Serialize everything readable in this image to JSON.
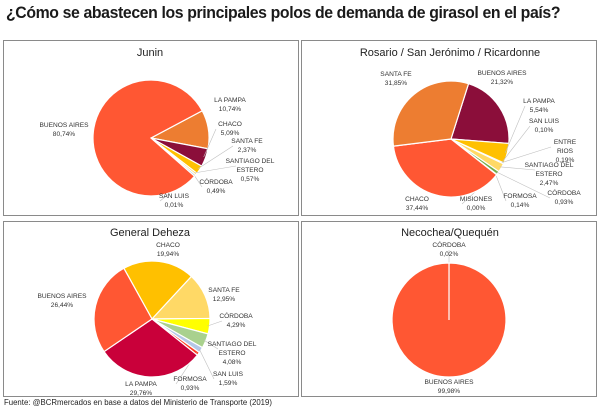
{
  "title": "¿Cómo se abastecen los principales polos de demanda de girasol en el país?",
  "footer": "Fuente: @BCRmercados en base a datos del Ministerio de Transporte (2019)",
  "chart_data": [
    {
      "type": "pie",
      "title": "Junin",
      "slices": [
        {
          "label": "LA PAMPA",
          "value": 10.74,
          "text": "10,74%",
          "color": "#ED7D31"
        },
        {
          "label": "CHACO",
          "value": 5.09,
          "text": "5,09%",
          "color": "#8B0E3A"
        },
        {
          "label": "SANTA FE",
          "value": 2.37,
          "text": "2,37%",
          "color": "#FFC000"
        },
        {
          "label": "SANTIAGO DEL ESTERO",
          "value": 0.57,
          "text": "0,57%",
          "color": "#FFD966"
        },
        {
          "label": "CÓRDOBA",
          "value": 0.49,
          "text": "0,49%",
          "color": "#9DC3E6"
        },
        {
          "label": "SAN LUIS",
          "value": 0.01,
          "text": "0,01%",
          "color": "#A9D18E"
        },
        {
          "label": "BUENOS AIRES",
          "value": 80.74,
          "text": "80,74%",
          "color": "#FF5733"
        }
      ]
    },
    {
      "type": "pie",
      "title": "Rosario / San Jerónimo / Ricardonne",
      "slices": [
        {
          "label": "BUENOS AIRES",
          "value": 21.32,
          "text": "21,32%",
          "color": "#8B0E3A"
        },
        {
          "label": "LA PAMPA",
          "value": 5.54,
          "text": "5,54%",
          "color": "#FFC000"
        },
        {
          "label": "SAN LUIS",
          "value": 0.1,
          "text": "0,10%",
          "color": "#9DC3E6"
        },
        {
          "label": "ENTRE RIOS",
          "value": 0.19,
          "text": "0,19%",
          "color": "#5B9BD5"
        },
        {
          "label": "SANTIAGO DEL ESTERO",
          "value": 2.47,
          "text": "2,47%",
          "color": "#FFD966"
        },
        {
          "label": "CÓRDOBA",
          "value": 0.93,
          "text": "0,93%",
          "color": "#70AD47"
        },
        {
          "label": "FORMOSA",
          "value": 0.14,
          "text": "0,14%",
          "color": "#A5A5A5"
        },
        {
          "label": "MISIONES",
          "value": 0.0,
          "text": "0,00%",
          "color": "#4472C4"
        },
        {
          "label": "CHACO",
          "value": 37.44,
          "text": "37,44%",
          "color": "#FF5733"
        },
        {
          "label": "SANTA FE",
          "value": 31.85,
          "text": "31,85%",
          "color": "#ED7D31"
        }
      ]
    },
    {
      "type": "pie",
      "title": "General Deheza",
      "slices": [
        {
          "label": "CHACO",
          "value": 19.94,
          "text": "19,94%",
          "color": "#FFC000"
        },
        {
          "label": "SANTA FE",
          "value": 12.95,
          "text": "12,95%",
          "color": "#FFD966"
        },
        {
          "label": "CÓRDOBA",
          "value": 4.29,
          "text": "4,29%",
          "color": "#FFFF00"
        },
        {
          "label": "SANTIAGO DEL ESTERO",
          "value": 4.08,
          "text": "4,08%",
          "color": "#A9D18E"
        },
        {
          "label": "SAN LUIS",
          "value": 1.59,
          "text": "1,59%",
          "color": "#B4C7E7"
        },
        {
          "label": "FORMOSA",
          "value": 0.93,
          "text": "0,93%",
          "color": "#FF3B1F"
        },
        {
          "label": "LA PAMPA",
          "value": 29.76,
          "text": "29,76%",
          "color": "#C9003A"
        },
        {
          "label": "BUENOS AIRES",
          "value": 26.44,
          "text": "26,44%",
          "color": "#FF5733"
        }
      ]
    },
    {
      "type": "pie",
      "title": "Necochea/Quequén",
      "slices": [
        {
          "label": "CÓRDOBA",
          "value": 0.02,
          "text": "0,02%",
          "color": "#ED7D31"
        },
        {
          "label": "BUENOS AIRES",
          "value": 99.98,
          "text": "99,98%",
          "color": "#FF5733"
        }
      ]
    }
  ]
}
